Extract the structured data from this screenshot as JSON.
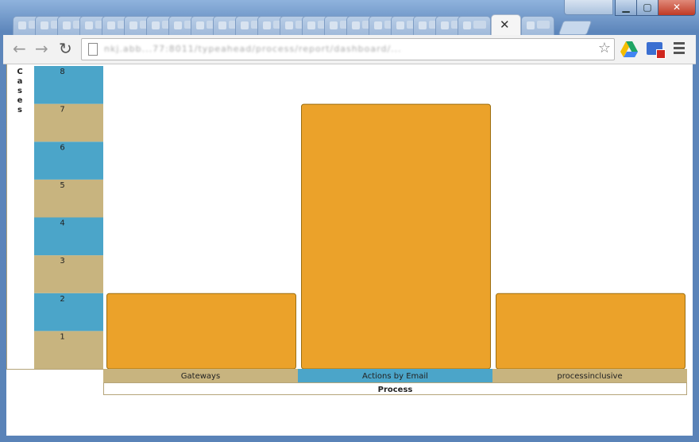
{
  "browser": {
    "active_tab_close": "✕",
    "url": "nkj.abb...77:8011/typeahead/process/report/dashboard/..."
  },
  "colors": {
    "bar_fill": "#EBA22A",
    "bar_stroke": "#9C6F12",
    "band_blue": "#4BA5C9",
    "band_tan": "#C8B47F",
    "axis_line": "#B5A479"
  },
  "chart_data": {
    "type": "bar",
    "xlabel": "Process",
    "ylabel": "Cases",
    "categories": [
      "Gateways",
      "Actions by Email",
      "processinclusive"
    ],
    "values": [
      2,
      7,
      2
    ],
    "ylim": [
      0,
      8
    ],
    "yticks": [
      1,
      2,
      3,
      4,
      5,
      6,
      7,
      8
    ],
    "grid": false,
    "legend": "none"
  }
}
